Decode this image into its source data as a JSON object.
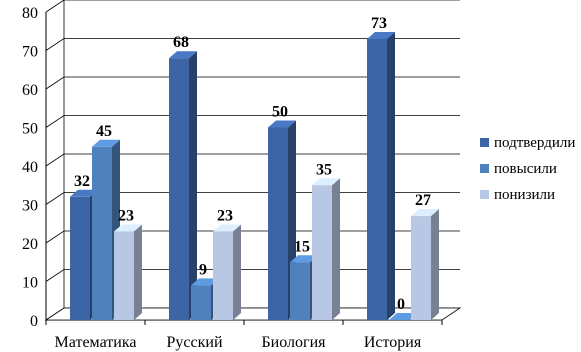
{
  "chart_data": {
    "type": "bar",
    "title": "",
    "xlabel": "",
    "ylabel": "",
    "ylim": [
      0,
      80
    ],
    "yticks": [
      0,
      10,
      20,
      30,
      40,
      50,
      60,
      70,
      80
    ],
    "grid": true,
    "legend_position": "right",
    "categories": [
      "Математика",
      "Русский",
      "Биология",
      "История"
    ],
    "series": [
      {
        "name": "подтвердили",
        "color": "#3D64A4",
        "values": [
          32,
          68,
          50,
          73
        ]
      },
      {
        "name": "повысили",
        "color": "#4F81BD",
        "values": [
          45,
          9,
          15,
          0
        ]
      },
      {
        "name": "понизили",
        "color": "#B8C7E3",
        "values": [
          23,
          23,
          35,
          27
        ]
      }
    ]
  }
}
